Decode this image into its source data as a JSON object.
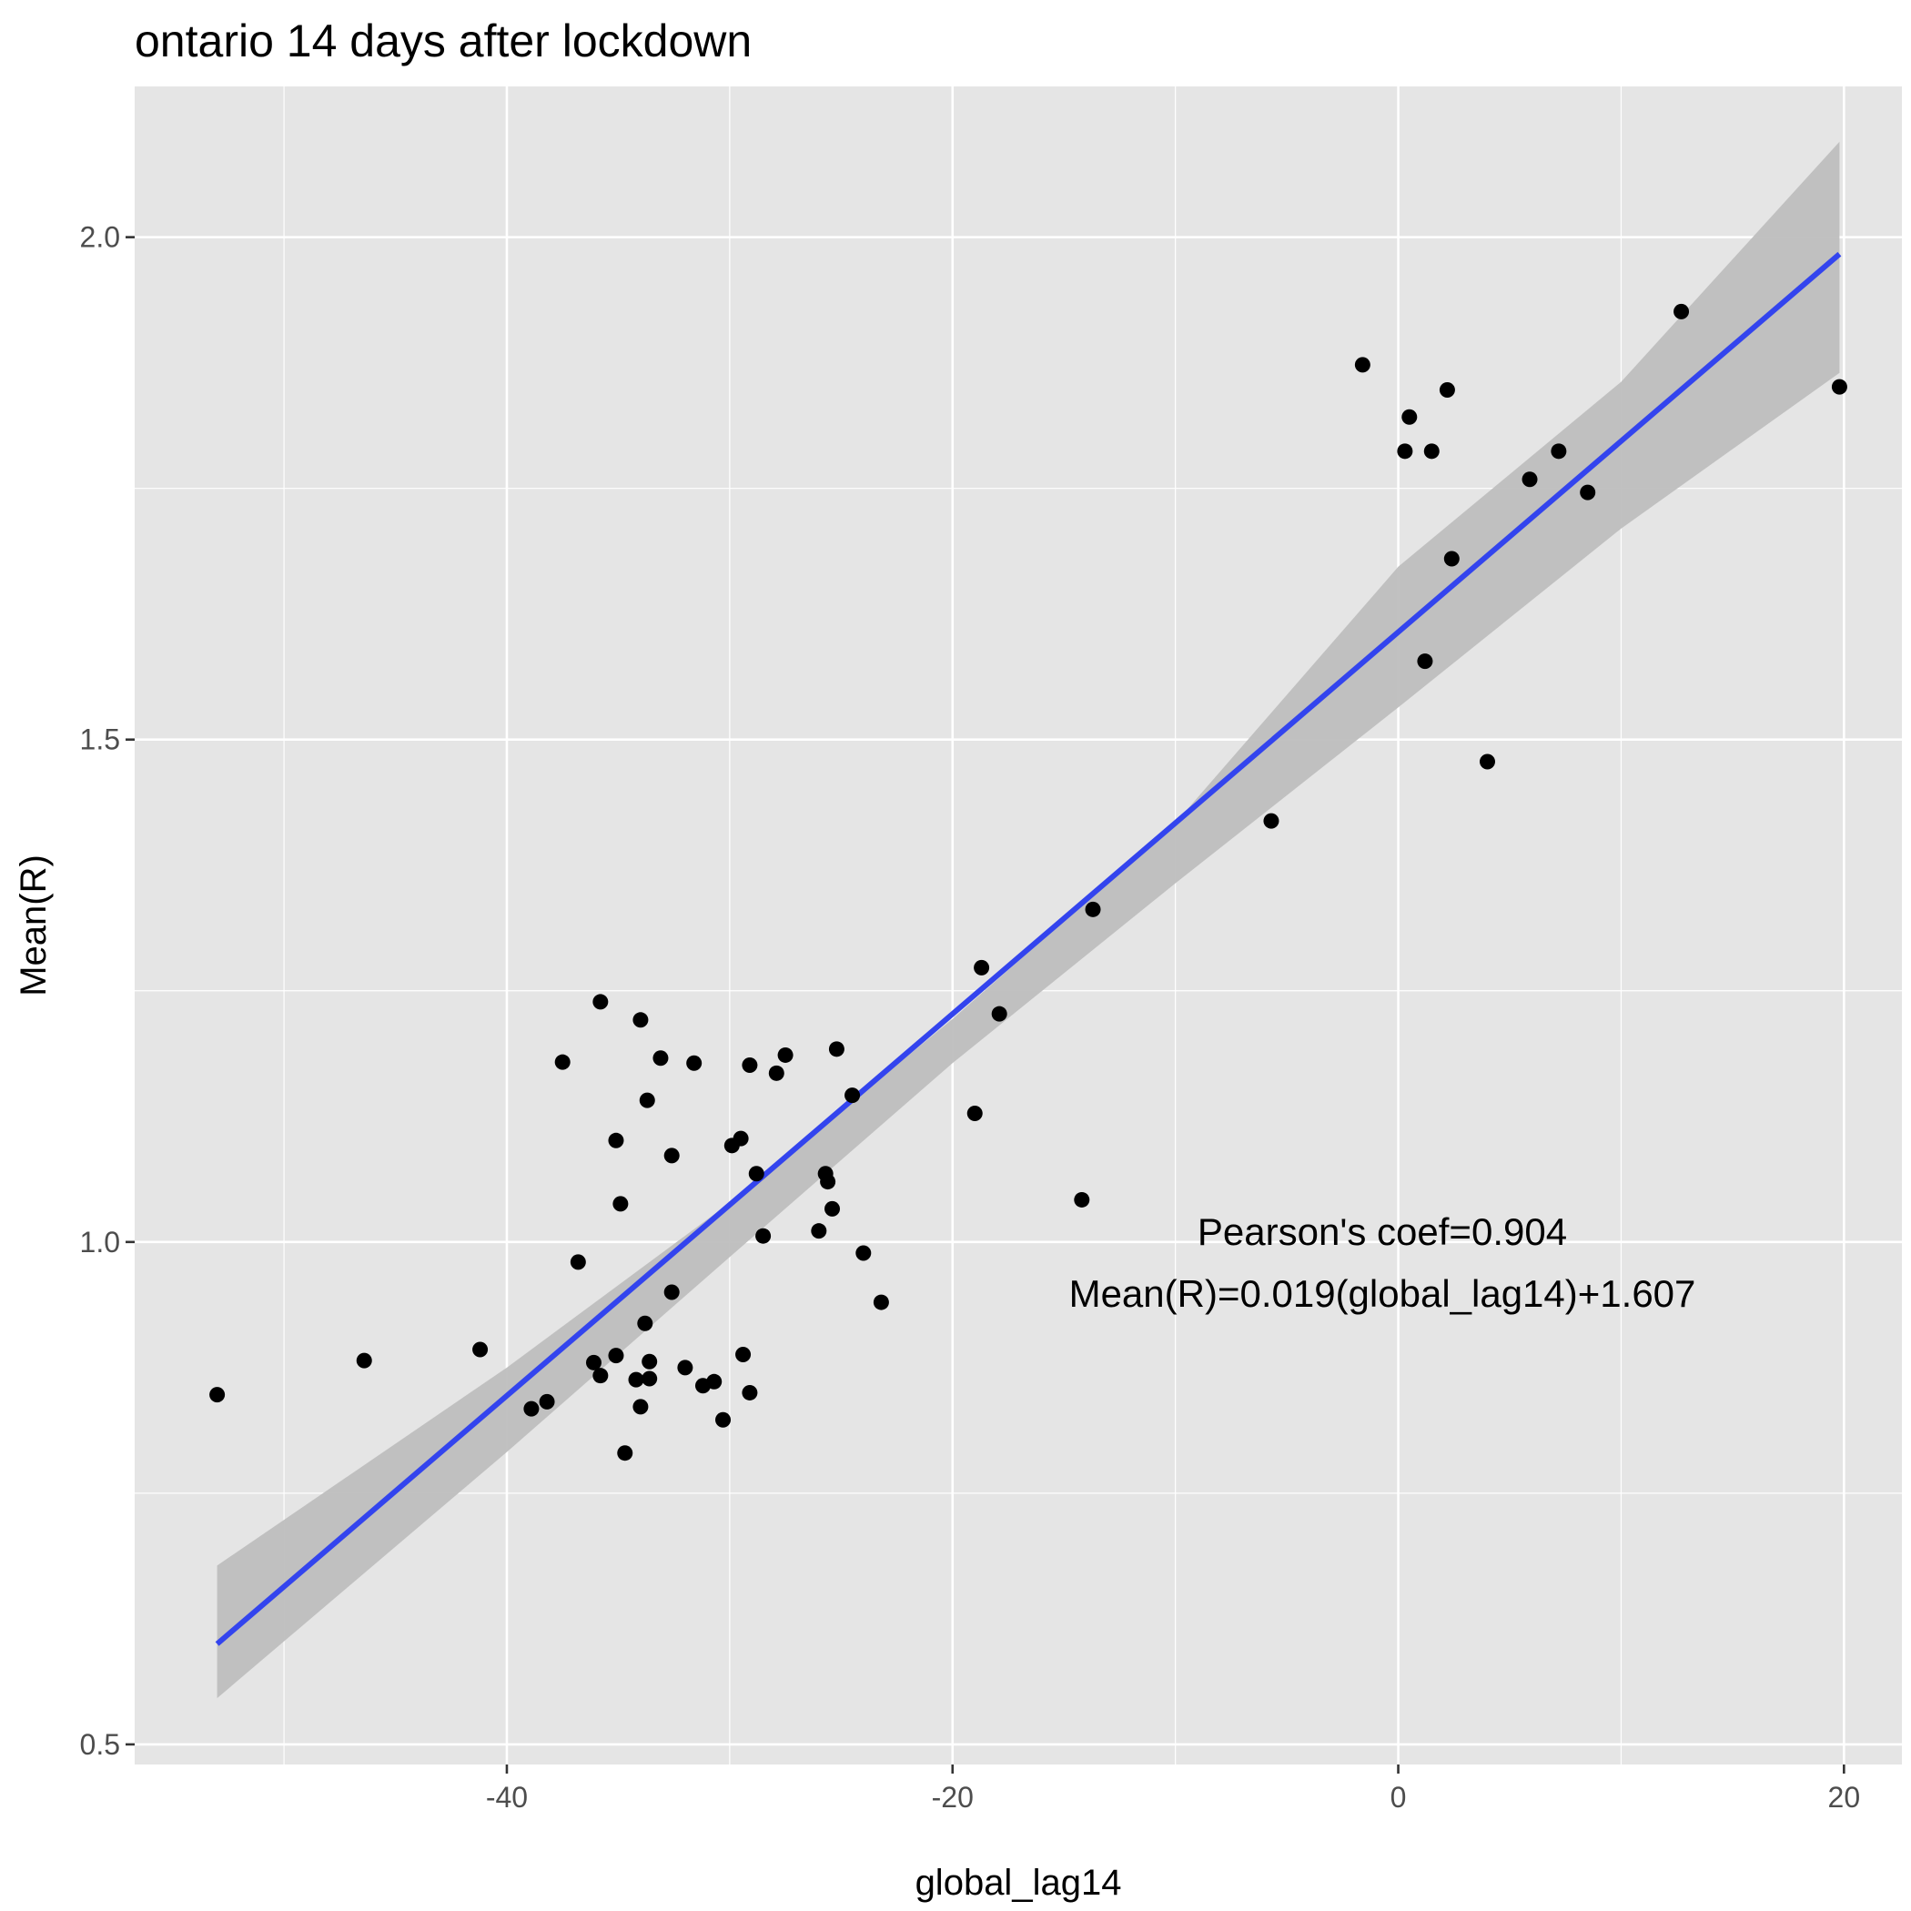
{
  "chart_data": {
    "type": "scatter",
    "title": "ontario 14 days after lockdown",
    "xlabel": "global_lag14",
    "ylabel": "Mean(R)",
    "xlim": [
      -56.7,
      22.6
    ],
    "ylim": [
      0.48,
      2.15
    ],
    "x_ticks": [
      -40,
      -20,
      0,
      20
    ],
    "x_tick_labels": [
      "-40",
      "-20",
      "0",
      "20"
    ],
    "x_minor_ticks": [
      -50,
      -30,
      -10,
      10
    ],
    "y_ticks": [
      0.5,
      1.0,
      1.5,
      2.0
    ],
    "y_tick_labels": [
      "0.5",
      "1.0",
      "1.5",
      "2.0"
    ],
    "y_minor_ticks": [
      0.75,
      1.25,
      1.75
    ],
    "grid": true,
    "background": "#e5e5e5",
    "grid_color": "#ffffff",
    "point_color": "#000000",
    "line_color": "#3344ee",
    "band_color": "#bebebe",
    "points": [
      [
        -53.0,
        0.848
      ],
      [
        -46.4,
        0.882
      ],
      [
        -41.2,
        0.893
      ],
      [
        -38.9,
        0.834
      ],
      [
        -38.2,
        0.841
      ],
      [
        -37.5,
        1.179
      ],
      [
        -36.8,
        0.98
      ],
      [
        -36.1,
        0.88
      ],
      [
        -35.8,
        1.239
      ],
      [
        -35.8,
        0.867
      ],
      [
        -35.1,
        1.101
      ],
      [
        -35.1,
        0.887
      ],
      [
        -34.9,
        1.038
      ],
      [
        -34.7,
        0.79
      ],
      [
        -34.2,
        0.863
      ],
      [
        -34.0,
        1.221
      ],
      [
        -34.0,
        0.836
      ],
      [
        -33.8,
        0.919
      ],
      [
        -33.7,
        1.141
      ],
      [
        -33.6,
        0.881
      ],
      [
        -33.6,
        0.864
      ],
      [
        -33.1,
        1.183
      ],
      [
        -32.6,
        1.086
      ],
      [
        -32.6,
        0.95
      ],
      [
        -32.0,
        0.875
      ],
      [
        -31.6,
        1.178
      ],
      [
        -31.2,
        0.857
      ],
      [
        -30.7,
        0.861
      ],
      [
        -30.3,
        0.823
      ],
      [
        -29.9,
        1.096
      ],
      [
        -29.5,
        1.103
      ],
      [
        -29.4,
        0.888
      ],
      [
        -29.1,
        1.176
      ],
      [
        -29.1,
        0.85
      ],
      [
        -28.8,
        1.068
      ],
      [
        -28.5,
        1.006
      ],
      [
        -27.9,
        1.168
      ],
      [
        -27.5,
        1.186
      ],
      [
        -26.0,
        1.011
      ],
      [
        -25.7,
        1.068
      ],
      [
        -25.6,
        1.06
      ],
      [
        -25.4,
        1.033
      ],
      [
        -25.2,
        1.192
      ],
      [
        -24.5,
        1.146
      ],
      [
        -24.0,
        0.989
      ],
      [
        -23.2,
        0.94
      ],
      [
        -19.0,
        1.128
      ],
      [
        -18.7,
        1.273
      ],
      [
        -17.9,
        1.227
      ],
      [
        -14.2,
        1.042
      ],
      [
        -13.7,
        1.331
      ],
      [
        -5.7,
        1.419
      ],
      [
        -1.6,
        1.873
      ],
      [
        0.3,
        1.787
      ],
      [
        0.5,
        1.821
      ],
      [
        1.5,
        1.787
      ],
      [
        1.2,
        1.578
      ],
      [
        2.2,
        1.848
      ],
      [
        2.4,
        1.68
      ],
      [
        4.0,
        1.478
      ],
      [
        5.9,
        1.759
      ],
      [
        7.2,
        1.787
      ],
      [
        8.5,
        1.746
      ],
      [
        12.7,
        1.926
      ],
      [
        19.8,
        1.851
      ]
    ],
    "regression": {
      "slope": 0.019,
      "intercept": 1.607,
      "x_range": [
        -53.0,
        19.8
      ]
    },
    "confidence_band": [
      [
        -53.0,
        0.546,
        0.678
      ],
      [
        -40.0,
        0.791,
        0.875
      ],
      [
        -30.0,
        0.985,
        1.039
      ],
      [
        -20.0,
        1.178,
        1.222
      ],
      [
        -10.0,
        1.357,
        1.417
      ],
      [
        0.0,
        1.532,
        1.672
      ],
      [
        10.0,
        1.71,
        1.856
      ],
      [
        19.8,
        1.865,
        2.095
      ]
    ],
    "annotations": {
      "pearson": "Pearson's coef=0.904",
      "equation": "Mean(R)=0.019(global_lag14)+1.607"
    }
  }
}
